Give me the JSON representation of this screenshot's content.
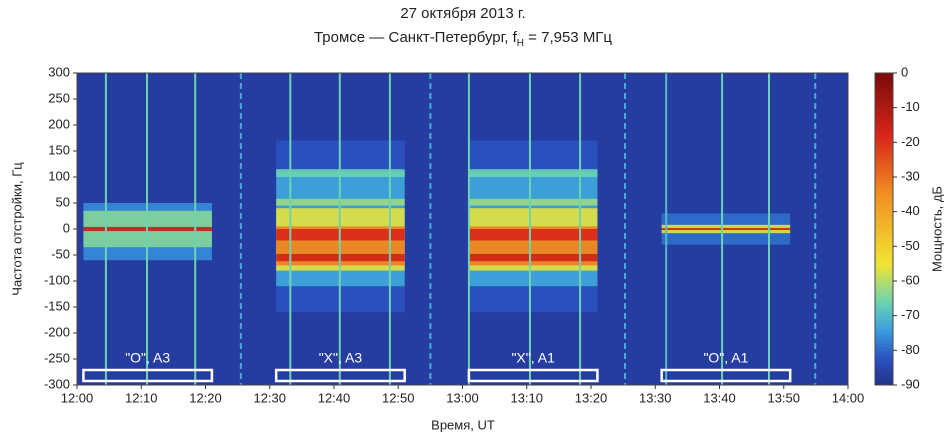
{
  "chart_data": {
    "type": "spectrogram",
    "title": "27 октября 2013 г.",
    "subtitle": [
      "Тромсе — Санкт-Петербург, f",
      "Н",
      " = 7,953 МГц"
    ],
    "x_label": "Время, UT",
    "y_label": "Частота отстройки, Гц",
    "colorbar_label": "Мощность, дБ",
    "xlim": [
      0,
      120
    ],
    "xticks": [
      {
        "value": 0,
        "label": "12:00"
      },
      {
        "value": 10,
        "label": "12:10"
      },
      {
        "value": 20,
        "label": "12:20"
      },
      {
        "value": 30,
        "label": "12:30"
      },
      {
        "value": 40,
        "label": "12:40"
      },
      {
        "value": 50,
        "label": "12:50"
      },
      {
        "value": 60,
        "label": "13:00"
      },
      {
        "value": 70,
        "label": "13:10"
      },
      {
        "value": 80,
        "label": "13:20"
      },
      {
        "value": 90,
        "label": "13:30"
      },
      {
        "value": 100,
        "label": "13:40"
      },
      {
        "value": 110,
        "label": "13:50"
      },
      {
        "value": 120,
        "label": "14:00"
      }
    ],
    "ylim": [
      -300,
      300
    ],
    "yticks": [
      -300,
      -250,
      -200,
      -150,
      -100,
      -50,
      0,
      50,
      100,
      150,
      200,
      250,
      300
    ],
    "clim": [
      -90,
      0
    ],
    "cticks": [
      0,
      -10,
      -20,
      -30,
      -40,
      -50,
      -60,
      -70,
      -80,
      -90
    ],
    "colormap": [
      {
        "value": -90,
        "color": "#22308c"
      },
      {
        "value": -82,
        "color": "#2a52c0"
      },
      {
        "value": -74,
        "color": "#3aa0e0"
      },
      {
        "value": -66,
        "color": "#6cd3b0"
      },
      {
        "value": -55,
        "color": "#f0e433"
      },
      {
        "value": -35,
        "color": "#f29022"
      },
      {
        "value": -18,
        "color": "#d8261a"
      },
      {
        "value": 0,
        "color": "#7a0b0b"
      }
    ],
    "background": -87,
    "bands": [
      {
        "t": [
          1,
          21
        ],
        "f": [
          -60,
          50
        ],
        "power": -76
      },
      {
        "t": [
          1,
          21
        ],
        "f": [
          -35,
          35
        ],
        "power": -64
      },
      {
        "t": [
          1,
          21
        ],
        "f": [
          -4,
          4
        ],
        "power": -14
      },
      {
        "t": [
          31,
          51
        ],
        "f": [
          -160,
          170
        ],
        "power": -82
      },
      {
        "t": [
          31,
          51
        ],
        "f": [
          -110,
          110
        ],
        "power": -73
      },
      {
        "t": [
          31,
          51
        ],
        "f": [
          100,
          115
        ],
        "power": -66
      },
      {
        "t": [
          31,
          51
        ],
        "f": [
          45,
          58
        ],
        "power": -62
      },
      {
        "t": [
          31,
          51
        ],
        "f": [
          -80,
          40
        ],
        "power": -56
      },
      {
        "t": [
          31,
          51
        ],
        "f": [
          -70,
          5
        ],
        "power": -32
      },
      {
        "t": [
          31,
          51
        ],
        "f": [
          -62,
          -48
        ],
        "power": -16
      },
      {
        "t": [
          31,
          51
        ],
        "f": [
          -22,
          0
        ],
        "power": -18
      },
      {
        "t": [
          61,
          81
        ],
        "f": [
          -160,
          170
        ],
        "power": -82
      },
      {
        "t": [
          61,
          81
        ],
        "f": [
          -110,
          110
        ],
        "power": -73
      },
      {
        "t": [
          61,
          81
        ],
        "f": [
          100,
          115
        ],
        "power": -66
      },
      {
        "t": [
          61,
          81
        ],
        "f": [
          45,
          58
        ],
        "power": -62
      },
      {
        "t": [
          61,
          81
        ],
        "f": [
          -80,
          40
        ],
        "power": -56
      },
      {
        "t": [
          61,
          81
        ],
        "f": [
          -70,
          5
        ],
        "power": -32
      },
      {
        "t": [
          61,
          81
        ],
        "f": [
          -62,
          -48
        ],
        "power": -16
      },
      {
        "t": [
          61,
          81
        ],
        "f": [
          -22,
          0
        ],
        "power": -18
      },
      {
        "t": [
          91,
          111
        ],
        "f": [
          -30,
          30
        ],
        "power": -79
      },
      {
        "t": [
          91,
          111
        ],
        "f": [
          -8,
          8
        ],
        "power": -56
      },
      {
        "t": [
          91,
          111
        ],
        "f": [
          -2,
          2
        ],
        "power": -16
      }
    ],
    "lines": [
      {
        "t": 4.5,
        "power": -66,
        "dashed": false
      },
      {
        "t": 10.9,
        "power": -66,
        "dashed": false
      },
      {
        "t": 18.4,
        "power": -66,
        "dashed": false
      },
      {
        "t": 25.5,
        "power": -72,
        "dashed": true
      },
      {
        "t": 33.2,
        "power": -66,
        "dashed": false
      },
      {
        "t": 40.9,
        "power": -66,
        "dashed": false
      },
      {
        "t": 48.7,
        "power": -66,
        "dashed": false
      },
      {
        "t": 55,
        "power": -72,
        "dashed": true
      },
      {
        "t": 61,
        "power": -66,
        "dashed": false
      },
      {
        "t": 70.5,
        "power": -66,
        "dashed": false
      },
      {
        "t": 78.3,
        "power": -66,
        "dashed": false
      },
      {
        "t": 85.3,
        "power": -72,
        "dashed": true
      },
      {
        "t": 91.7,
        "power": -70,
        "dashed": false
      },
      {
        "t": 100.4,
        "power": -66,
        "dashed": false
      },
      {
        "t": 107.7,
        "power": -66,
        "dashed": false
      },
      {
        "t": 114.9,
        "power": -72,
        "dashed": true
      }
    ],
    "annotations": [
      {
        "text": "\"O\", A3",
        "t": [
          1,
          21
        ]
      },
      {
        "text": "\"X\", A3",
        "t": [
          31,
          51
        ]
      },
      {
        "text": "\"X\", A1",
        "t": [
          61,
          81
        ]
      },
      {
        "text": "\"O\", A1",
        "t": [
          91,
          111
        ]
      }
    ]
  }
}
